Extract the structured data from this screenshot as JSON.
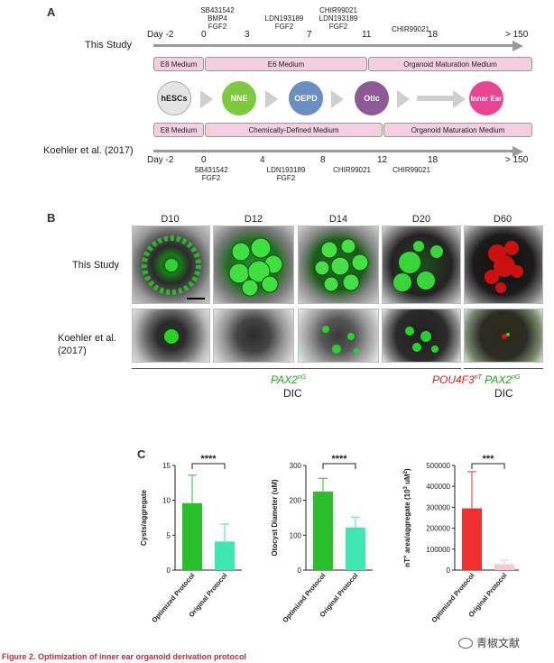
{
  "panel_a": {
    "letter": "A",
    "this_study": {
      "label": "This Study",
      "days": [
        "Day -2",
        "0",
        "3",
        "7",
        "11",
        "18",
        "> 150"
      ],
      "treatments": [
        "SB431542\nBMP4\nFGF2",
        "LDN193189\nFGF2",
        "CHIR99021\nLDN193189\nFGF2",
        "CHIR99021"
      ],
      "media": [
        "E8 Medium",
        "E6 Medium",
        "Organoid Maturation Medium"
      ]
    },
    "stages": [
      "hESCs",
      "NNE",
      "OEPD",
      "Otic",
      "Inner Ear"
    ],
    "koehler": {
      "label": "Koehler et al. (2017)",
      "days": [
        "Day -2",
        "0",
        "4",
        "8",
        "12",
        "18",
        "> 150"
      ],
      "treatments": [
        "SB431542\nFGF2",
        "LDN193189\nFGF2",
        "CHIR99021",
        "CHIR99021"
      ],
      "media": [
        "E8 Medium",
        "Chemically-Defined Medium",
        "Organoid Maturation Medium"
      ]
    }
  },
  "panel_b": {
    "letter": "B",
    "columns": [
      "D10",
      "D12",
      "D14",
      "D20",
      "D60"
    ],
    "rows": [
      "This Study",
      "Koehler et al.\n(2017)"
    ],
    "legend_left_gene": "PAX2",
    "legend_left_sup": "nG",
    "legend_left_dic": "DIC",
    "legend_right_gene1": "POU4F3",
    "legend_right_sup1": "nT",
    "legend_right_gene2": "PAX2",
    "legend_right_sup2": "nG",
    "legend_right_dic": "DIC"
  },
  "panel_c": {
    "letter": "C"
  },
  "chart_data": [
    {
      "type": "bar",
      "categories": [
        "Optimized Protocol",
        "Original Protocol"
      ],
      "values": [
        9.6,
        4.1
      ],
      "errors": [
        4.0,
        2.5
      ],
      "ylabel": "Cysts/aggregate",
      "ylim": [
        0,
        15
      ],
      "yticks": [
        0,
        5,
        10,
        15
      ],
      "significance": "****",
      "colors": [
        "#2bbf2b",
        "#3ee8b0"
      ]
    },
    {
      "type": "bar",
      "categories": [
        "Optimized Protocol",
        "Original Protocol"
      ],
      "values": [
        225,
        122
      ],
      "errors": [
        38,
        30
      ],
      "ylabel": "Otocyst Diameter (uM)",
      "ylim": [
        0,
        300
      ],
      "yticks": [
        0,
        100,
        200,
        300
      ],
      "significance": "****",
      "colors": [
        "#2bbf2b",
        "#3ee8b0"
      ]
    },
    {
      "type": "bar",
      "categories": [
        "Optimized Protocol",
        "Original Protocol"
      ],
      "values": [
        295000,
        28000
      ],
      "errors": [
        175000,
        20000
      ],
      "ylabel": "nT+ area/aggregate (10^3 uM^2)",
      "ylim": [
        0,
        500000
      ],
      "yticks": [
        0,
        100000,
        200000,
        300000,
        400000,
        500000
      ],
      "significance": "***",
      "colors": [
        "#f03030",
        "#f7c9cf"
      ]
    }
  ],
  "caption": "Figure 2. Optimization of inner ear organoid derivation protocol",
  "watermark": "青椒文献"
}
